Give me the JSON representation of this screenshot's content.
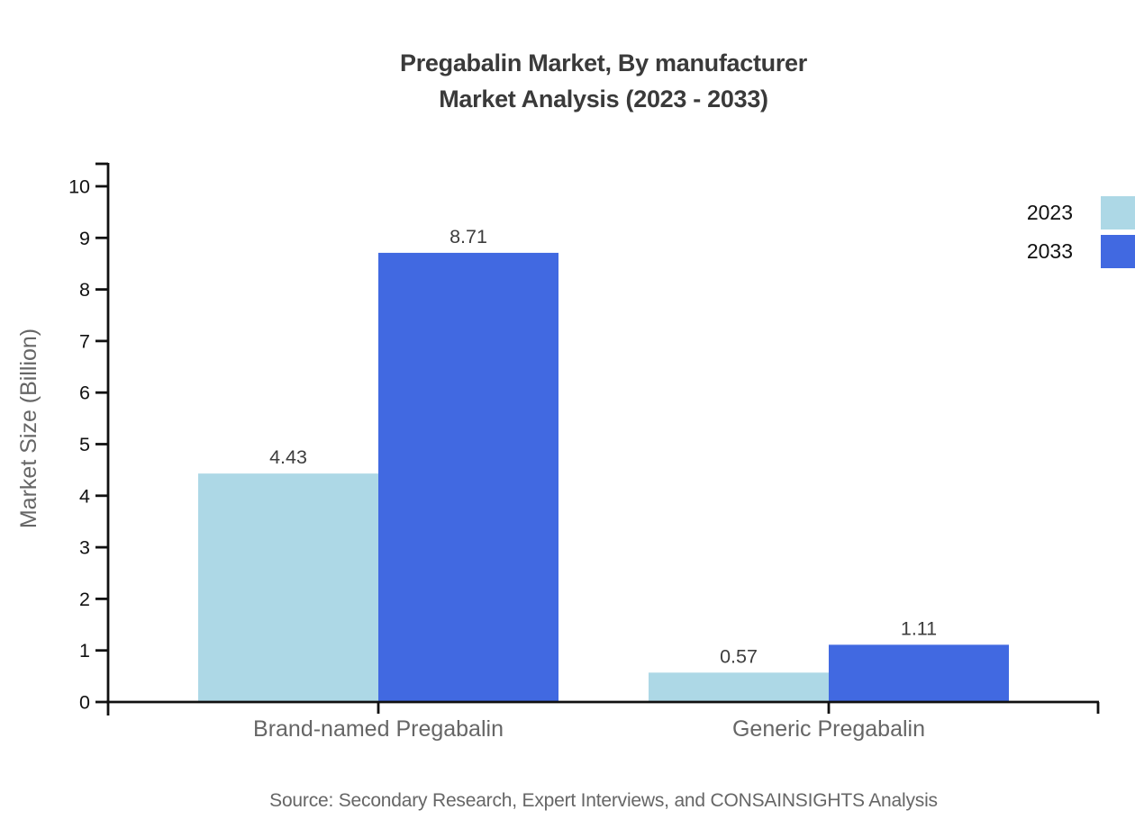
{
  "title": {
    "line1": "Pregabalin Market, By manufacturer",
    "line2": "Market Analysis (2023 - 2033)"
  },
  "legend": [
    {
      "label": "2023",
      "color": "#ADD8E6"
    },
    {
      "label": "2033",
      "color": "#4169E1"
    }
  ],
  "source": "Source: Secondary Research, Expert Interviews, and CONSAINSIGHTS Analysis",
  "chart_data": {
    "type": "bar",
    "title": "Pregabalin Market, By manufacturer Market Analysis (2023 - 2033)",
    "categories": [
      "Brand-named Pregabalin",
      "Generic Pregabalin"
    ],
    "series": [
      {
        "name": "2023",
        "color": "#ADD8E6",
        "values": [
          4.43,
          0.57
        ]
      },
      {
        "name": "2033",
        "color": "#4169E1",
        "values": [
          8.71,
          1.11
        ]
      }
    ],
    "value_labels": [
      [
        "4.43",
        "0.57"
      ],
      [
        "8.71",
        "1.11"
      ]
    ],
    "xlabel": "",
    "ylabel": "Market Size (Billion)",
    "ylim": [
      0,
      10
    ],
    "yticks": [
      0,
      1,
      2,
      3,
      4,
      5,
      6,
      7,
      8,
      9,
      10
    ],
    "grid": false,
    "legend_position": "top-right"
  },
  "colors": {
    "axis": "#111111",
    "tick_label": "#111111",
    "value_label": "#3d3d3d",
    "category_label": "#666666",
    "title_text": "#3a3a3a",
    "muted_text": "#666666",
    "background": "#ffffff"
  }
}
